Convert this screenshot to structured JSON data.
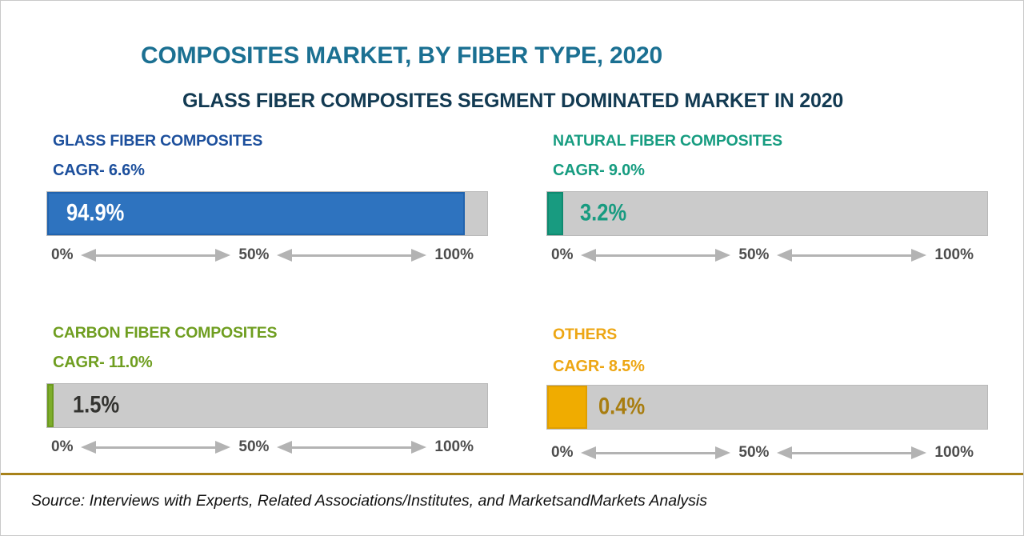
{
  "page": {
    "title": "COMPOSITES MARKET, BY FIBER TYPE, 2020",
    "subtitle": "GLASS FIBER COMPOSITES SEGMENT DOMINATED MARKET IN 2020",
    "source": "Source: Interviews with Experts, Related Associations/Institutes, and MarketsandMarkets Analysis",
    "colors": {
      "title": "#1b7092",
      "subtitle": "#123a52",
      "divider": "#a8821a",
      "track": "#cbcbcb",
      "axis_label": "#4d4d4d",
      "arrow": "#b3b3b3"
    }
  },
  "axis": {
    "ticks": [
      "0%",
      "50%",
      "100%"
    ]
  },
  "chart_data": {
    "type": "bar",
    "orientation": "horizontal",
    "title": "COMPOSITES MARKET, BY FIBER TYPE, 2020",
    "subtitle": "GLASS FIBER COMPOSITES SEGMENT DOMINATED MARKET IN 2020",
    "unit": "%",
    "xlim": [
      0,
      100
    ],
    "x_ticks": [
      "0%",
      "50%",
      "100%"
    ],
    "grid": false,
    "legend": false,
    "source": "Source: Interviews with Experts, Related Associations/Institutes, and MarketsandMarkets Analysis",
    "segments": [
      {
        "name": "GLASS FIBER COMPOSITES",
        "cagr_label": "CAGR- 6.6%",
        "cagr_pct": 6.6,
        "share_pct": 94.9,
        "share_label": "94.9%",
        "color": "#2e73bf",
        "border_color": "#2163ae",
        "label_color": "#1c4f9c",
        "value_color": "#ffffff",
        "bar_display_width": "94.9%",
        "value_offset": "24px"
      },
      {
        "name": "NATURAL FIBER COMPOSITES",
        "cagr_label": "CAGR- 9.0%",
        "cagr_pct": 9.0,
        "share_pct": 3.2,
        "share_label": "3.2%",
        "color": "#189b80",
        "border_color": "#0f8a70",
        "label_color": "#169c80",
        "value_color": "#189b80",
        "bar_display_width": "3.7%",
        "value_offset": "41px"
      },
      {
        "name": "CARBON FIBER COMPOSITES",
        "cagr_label": "CAGR- 11.0%",
        "cagr_pct": 11.0,
        "share_pct": 1.5,
        "share_label": "1.5%",
        "color": "#7dad2a",
        "border_color": "#6c9a1f",
        "label_color": "#6f9e20",
        "value_color": "#333330",
        "bar_display_width": "1.5%",
        "value_offset": "32px"
      },
      {
        "name": "OTHERS",
        "cagr_label": "CAGR- 8.5%",
        "cagr_pct": 8.5,
        "share_pct": 0.4,
        "share_label": "0.4%",
        "color": "#f0ac00",
        "border_color": "#e09f00",
        "label_color": "#eda613",
        "value_color": "#a87d10",
        "bar_display_width": "9.1%",
        "value_offset": "64px"
      }
    ]
  }
}
